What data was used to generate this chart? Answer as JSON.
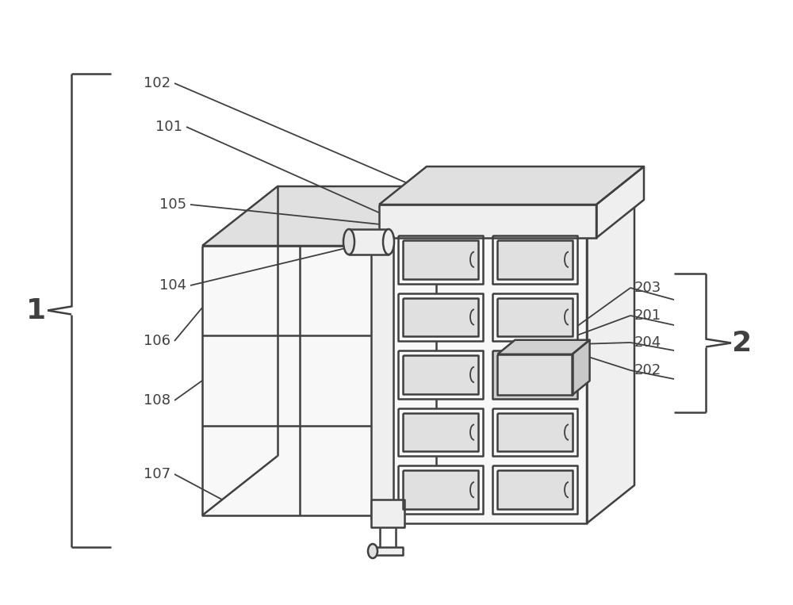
{
  "bg_color": "#ffffff",
  "line_color": "#404040",
  "lw": 1.8,
  "fig_width": 10.0,
  "fig_height": 7.63
}
